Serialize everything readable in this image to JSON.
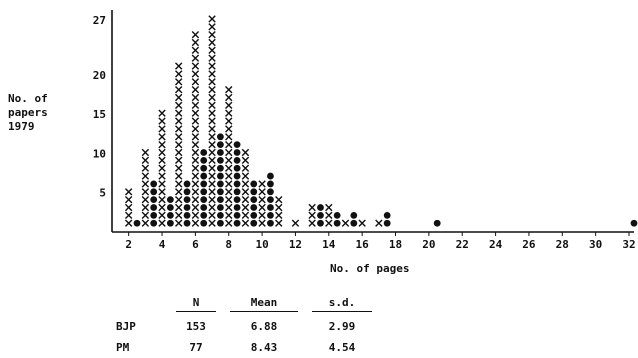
{
  "chart_data": {
    "type": "scatter",
    "ylabel_lines": [
      "No. of",
      "papers",
      "1979"
    ],
    "xlabel": "No. of pages",
    "x_ticks": [
      2,
      4,
      6,
      8,
      10,
      12,
      14,
      16,
      18,
      20,
      22,
      24,
      26,
      28,
      30,
      32
    ],
    "y_ticks": [
      5,
      10,
      15,
      20,
      27
    ],
    "xlim": [
      1,
      32.3
    ],
    "ylim": [
      0,
      28
    ],
    "series": [
      {
        "symbol": "x",
        "x": [
          2,
          3,
          4,
          5,
          6,
          7,
          8,
          9,
          10,
          11,
          12,
          13,
          14,
          15,
          16,
          17
        ],
        "values": [
          5,
          10,
          15,
          21,
          25,
          27,
          18,
          10,
          6,
          4,
          1,
          3,
          3,
          1,
          1,
          1
        ]
      },
      {
        "symbol": "dot",
        "x": [
          2.5,
          3.5,
          4.5,
          5.5,
          6.5,
          7.5,
          8.5,
          9.5,
          10.5,
          13.5,
          14.5,
          15.5,
          17.5,
          20.5,
          32.3
        ],
        "values": [
          1,
          6,
          4,
          6,
          10,
          12,
          11,
          6,
          7,
          3,
          2,
          2,
          2,
          1,
          1
        ]
      }
    ]
  },
  "stats": {
    "headers": [
      "N",
      "Mean",
      "s.d."
    ],
    "rows": [
      {
        "label": "BJP",
        "n": "153",
        "mean": "6.88",
        "sd": "2.99"
      },
      {
        "label": "PM",
        "n": "77",
        "mean": "8.43",
        "sd": "4.54"
      }
    ]
  }
}
